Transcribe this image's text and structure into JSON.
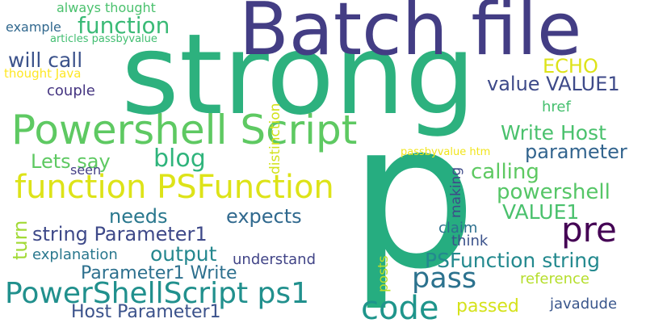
{
  "words": {
    "strong": {
      "text": "strong",
      "color": "#2db17e"
    },
    "p": {
      "text": "p",
      "color": "#26ad80"
    },
    "batch_file": {
      "text": "Batch file",
      "color": "#433d84"
    },
    "powershell_script": {
      "text": "Powershell Script",
      "color": "#5ec962"
    },
    "function_psfunction": {
      "text": "function PSFunction",
      "color": "#dde318"
    },
    "powershellscript_ps1": {
      "text": "PowerShellScript ps1",
      "color": "#21908d"
    },
    "code": {
      "text": "code",
      "color": "#1f958b"
    },
    "pre": {
      "text": "pre",
      "color": "#440154"
    },
    "pass": {
      "text": "pass",
      "color": "#2c728e"
    },
    "function": {
      "text": "function",
      "color": "#3aba76"
    },
    "will_call": {
      "text": "will call",
      "color": "#3b528b"
    },
    "echo": {
      "text": "ECHO",
      "color": "#dde318"
    },
    "value_value1": {
      "text": "value VALUE1",
      "color": "#3e4a89"
    },
    "write_host": {
      "text": "Write Host",
      "color": "#4ac16d"
    },
    "parameter": {
      "text": "parameter",
      "color": "#32648e"
    },
    "blog": {
      "text": "blog",
      "color": "#2fb47c"
    },
    "lets_say": {
      "text": "Lets say",
      "color": "#5ec962"
    },
    "calling": {
      "text": "calling",
      "color": "#5ec962"
    },
    "powershell": {
      "text": "powershell",
      "color": "#56c667"
    },
    "needs": {
      "text": "needs",
      "color": "#2a788e"
    },
    "expects": {
      "text": "expects",
      "color": "#30698e"
    },
    "value1": {
      "text": "VALUE1",
      "color": "#4ac16d"
    },
    "string_parameter1": {
      "text": "string Parameter1",
      "color": "#3e4989"
    },
    "output": {
      "text": "output",
      "color": "#24878e"
    },
    "psfunction_string": {
      "text": "PSFunction string",
      "color": "#23898e"
    },
    "parameter1_write": {
      "text": "Parameter1 Write",
      "color": "#2d708e"
    },
    "host_parameter1": {
      "text": "Host Parameter1",
      "color": "#3b528b"
    },
    "passed": {
      "text": "passed",
      "color": "#d5e21a"
    },
    "javadude": {
      "text": "javadude",
      "color": "#39568c"
    },
    "reference": {
      "text": "reference",
      "color": "#b5de2b"
    },
    "understand": {
      "text": "understand",
      "color": "#414487"
    },
    "explanation": {
      "text": "explanation",
      "color": "#2a788e"
    },
    "claim": {
      "text": "claim",
      "color": "#2d708e"
    },
    "think": {
      "text": "think",
      "color": "#3b528b"
    },
    "href": {
      "text": "href",
      "color": "#46c06f"
    },
    "couple": {
      "text": "couple",
      "color": "#453581"
    },
    "seen": {
      "text": "seen",
      "color": "#433e85"
    },
    "example": {
      "text": "example",
      "color": "#31688e"
    },
    "always_thought": {
      "text": "always thought",
      "color": "#4ac16d"
    },
    "articles_passbyvalue": {
      "text": "articles passbyvalue",
      "color": "#42be71"
    },
    "thought_java": {
      "text": "thought Java",
      "color": "#fde725"
    },
    "passbyvalue_htm": {
      "text": "passbyvalue htm",
      "color": "#f1e51d"
    },
    "turn": {
      "text": "turn",
      "color": "#a2da37"
    },
    "distinction": {
      "text": "distinction",
      "color": "#d2e21b"
    },
    "making": {
      "text": "making",
      "color": "#3e4a89"
    },
    "posts": {
      "text": "posts",
      "color": "#b8de29"
    }
  }
}
